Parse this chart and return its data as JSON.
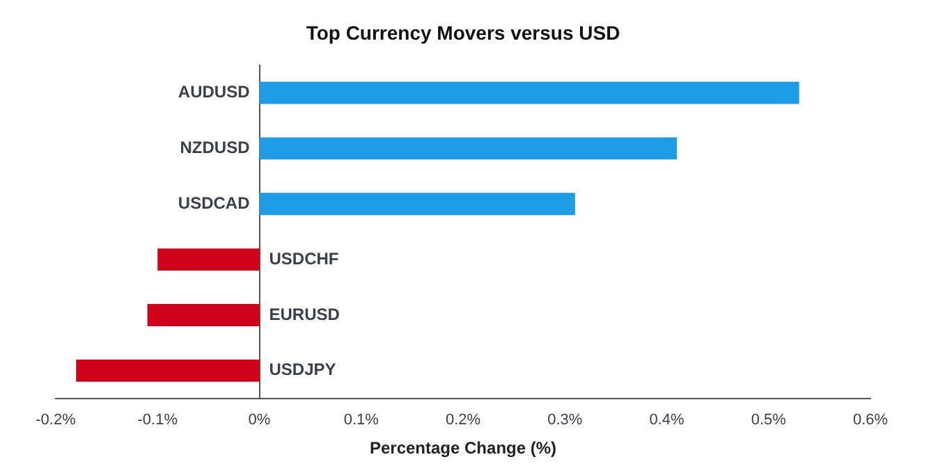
{
  "chart_data": {
    "type": "bar",
    "orientation": "horizontal",
    "title": "Top Currency Movers versus USD",
    "xlabel": "Percentage Change (%)",
    "categories": [
      "AUDUSD",
      "NZDUSD",
      "USDCAD",
      "USDCHF",
      "EURUSD",
      "USDJPY"
    ],
    "values": [
      0.53,
      0.41,
      0.31,
      -0.1,
      -0.11,
      -0.18
    ],
    "colors": [
      "#1e9de6",
      "#1e9de6",
      "#1e9de6",
      "#d0021b",
      "#d0021b",
      "#d0021b"
    ],
    "xlim": [
      -0.2,
      0.6
    ],
    "xticks": [
      {
        "value": -0.2,
        "label": "-0.2%"
      },
      {
        "value": -0.1,
        "label": "-0.1%"
      },
      {
        "value": 0,
        "label": "0%"
      },
      {
        "value": 0.1,
        "label": "0.1%"
      },
      {
        "value": 0.2,
        "label": "0.2%"
      },
      {
        "value": 0.3,
        "label": "0.3%"
      },
      {
        "value": 0.4,
        "label": "0.4%"
      },
      {
        "value": 0.5,
        "label": "0.5%"
      },
      {
        "value": 0.6,
        "label": "0.6%"
      }
    ],
    "grid": false,
    "legend": false
  }
}
